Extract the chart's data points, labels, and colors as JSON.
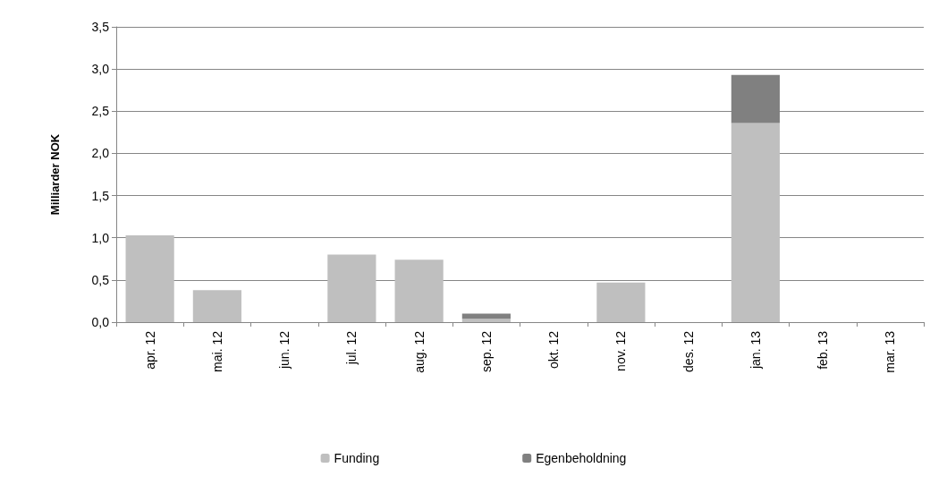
{
  "chart_data": {
    "type": "bar",
    "stacked": true,
    "ylabel": "Milliarder NOK",
    "categories": [
      "apr. 12",
      "mai. 12",
      "jun. 12",
      "jul. 12",
      "aug. 12",
      "sep. 12",
      "okt. 12",
      "nov. 12",
      "des. 12",
      "jan. 13",
      "feb. 13",
      "mar. 13"
    ],
    "series": [
      {
        "name": "Funding",
        "color": "#bfbfbf",
        "values": [
          1.03,
          0.38,
          0,
          0.8,
          0.74,
          0.04,
          0,
          0.47,
          0,
          2.36,
          0,
          0
        ]
      },
      {
        "name": "Egenbeholdning",
        "color": "#808080",
        "values": [
          0,
          0,
          0,
          0,
          0,
          0.06,
          0,
          0,
          0,
          0.57,
          0,
          0
        ]
      }
    ],
    "ylim": [
      0,
      3.5
    ],
    "yticks": [
      {
        "value": 0,
        "label": "0,0"
      },
      {
        "value": 0.5,
        "label": "0,5"
      },
      {
        "value": 1,
        "label": "1,0"
      },
      {
        "value": 1.5,
        "label": "1,5"
      },
      {
        "value": 2,
        "label": "2,0"
      },
      {
        "value": 2.5,
        "label": "2,5"
      },
      {
        "value": 3,
        "label": "3,0"
      },
      {
        "value": 3.5,
        "label": "3,5"
      }
    ],
    "grid": "y",
    "legend": "bottom"
  }
}
